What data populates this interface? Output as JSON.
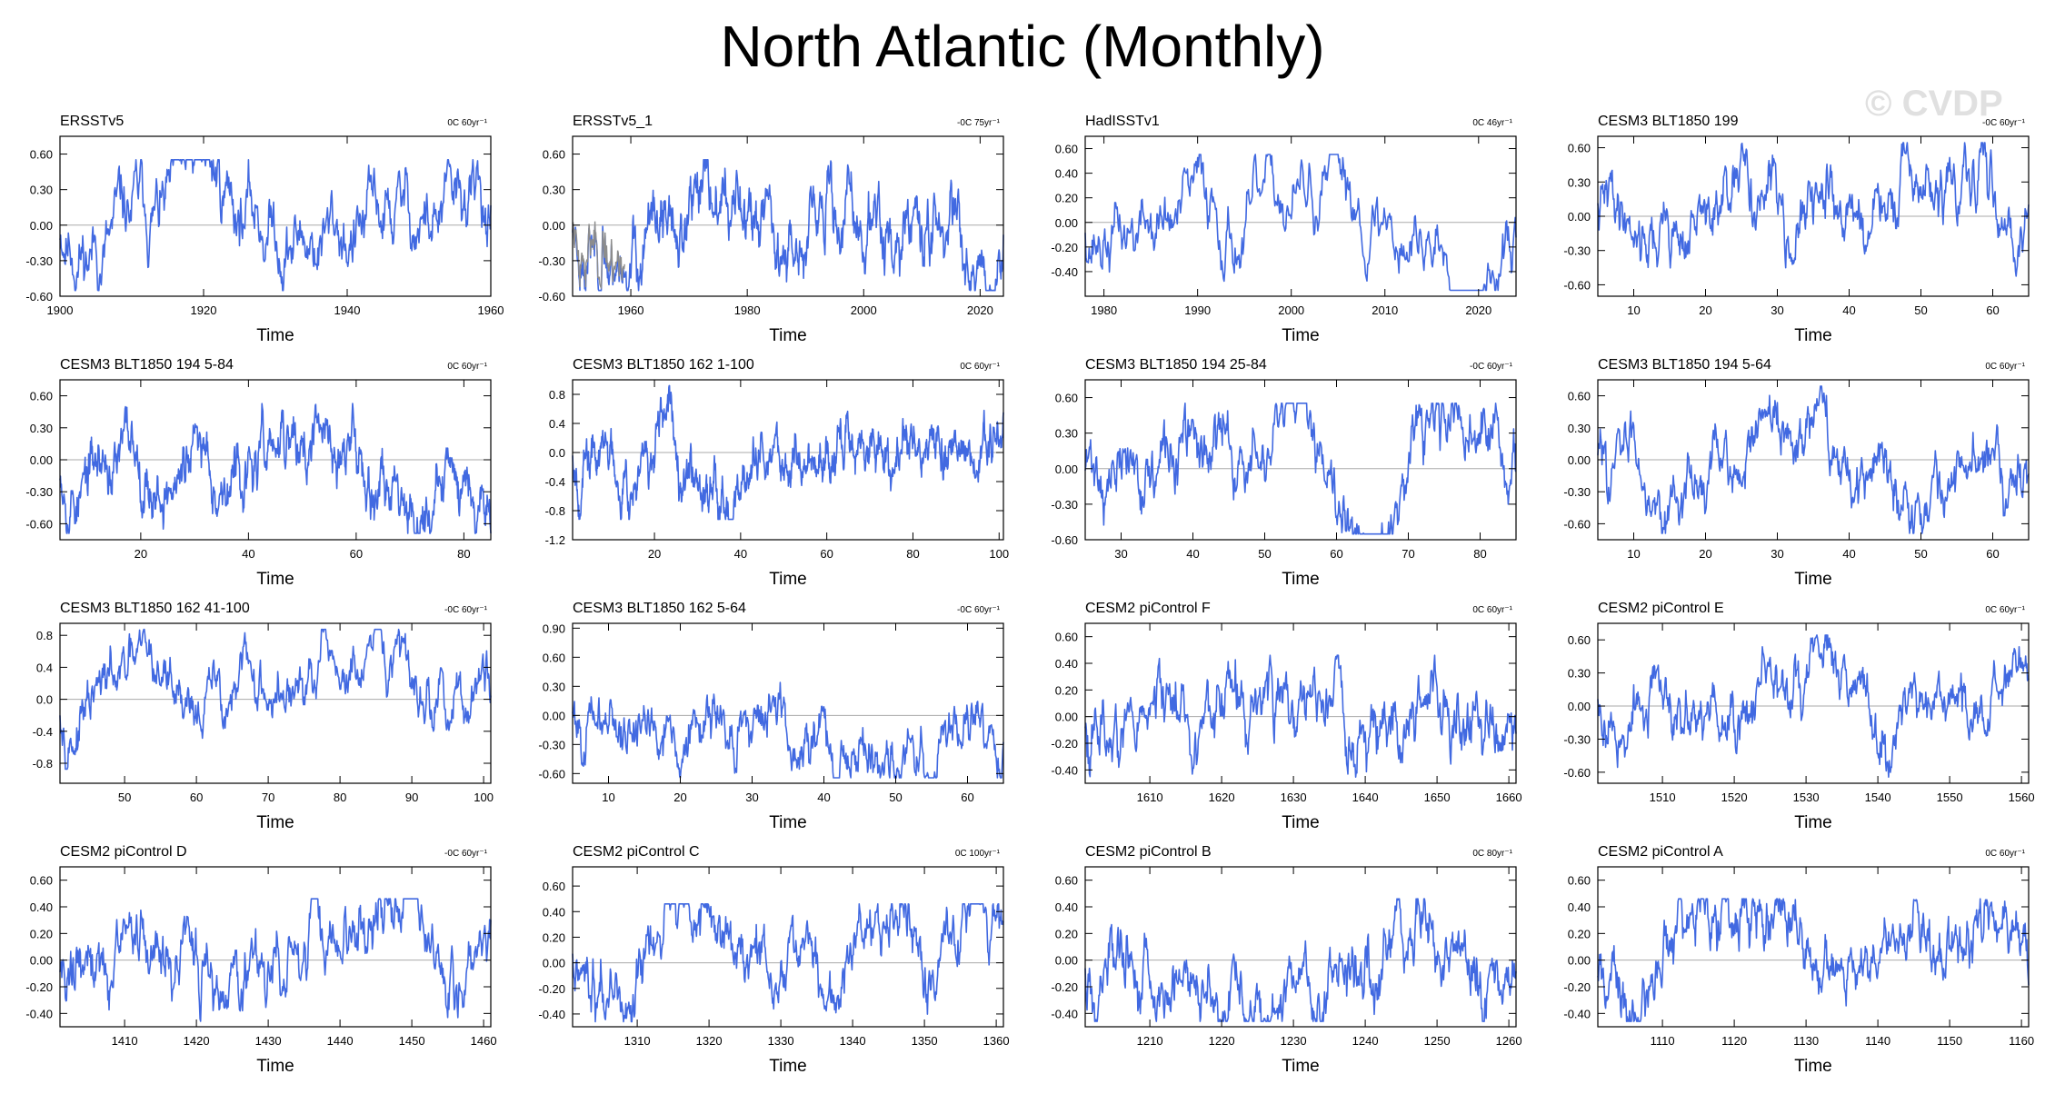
{
  "title": "North Atlantic (Monthly)",
  "watermark": "© CVDP",
  "colors": {
    "series": "#4169e1",
    "zero_line": "#aaaaaa",
    "obs_overlay": "#8c8c8c",
    "axis": "#000000"
  },
  "chart_data": [
    {
      "type": "line",
      "title": "ERSSTv5",
      "trend": "0C 60yr⁻¹",
      "xlabel": "Time",
      "xlim": [
        1900,
        1960
      ],
      "xticks": [
        1900,
        1920,
        1940,
        1960
      ],
      "ylim": [
        -0.6,
        0.75
      ],
      "yticks": [
        "0.60",
        "0.30",
        "0.00",
        "-0.30",
        "-0.60"
      ],
      "seed": 11,
      "amp": 0.2,
      "ar": 0.85
    },
    {
      "type": "line",
      "title": "ERSSTv5_1",
      "trend": "-0C 75yr⁻¹",
      "xlabel": "Time",
      "xlim": [
        1950,
        2024
      ],
      "xticks": [
        1960,
        1980,
        2000,
        2020
      ],
      "ylim": [
        -0.6,
        0.75
      ],
      "yticks": [
        "0.60",
        "0.30",
        "0.00",
        "-0.30",
        "-0.60"
      ],
      "seed": 23,
      "amp": 0.2,
      "ar": 0.85,
      "overlay": [
        1950,
        1959
      ]
    },
    {
      "type": "line",
      "title": "HadISSTv1",
      "trend": "0C 46yr⁻¹",
      "xlabel": "Time",
      "xlim": [
        1978,
        2024
      ],
      "xticks": [
        1980,
        1990,
        2000,
        2010,
        2020
      ],
      "ylim": [
        -0.6,
        0.7
      ],
      "yticks": [
        "0.60",
        "0.40",
        "0.20",
        "0.00",
        "-0.20",
        "-0.40"
      ],
      "seed": 37,
      "amp": 0.18,
      "ar": 0.85
    },
    {
      "type": "line",
      "title": "CESM3 BLT1850 199",
      "trend": "-0C 60yr⁻¹",
      "xlabel": "Time",
      "xlim": [
        5,
        65
      ],
      "xticks": [
        10,
        20,
        30,
        40,
        50,
        60
      ],
      "ylim": [
        -0.7,
        0.7
      ],
      "yticks": [
        "0.60",
        "0.30",
        "0.00",
        "-0.30",
        "-0.60"
      ],
      "seed": 41,
      "amp": 0.17,
      "ar": 0.85
    },
    {
      "type": "line",
      "title": "CESM3 BLT1850 194 5-84",
      "trend": "0C 60yr⁻¹",
      "xlabel": "Time",
      "xlim": [
        5,
        85
      ],
      "xticks": [
        20,
        40,
        60,
        80
      ],
      "ylim": [
        -0.75,
        0.75
      ],
      "yticks": [
        "0.60",
        "0.30",
        "0.00",
        "-0.30",
        "-0.60"
      ],
      "seed": 53,
      "amp": 0.18,
      "ar": 0.8
    },
    {
      "type": "line",
      "title": "CESM3 BLT1850 162 1-100",
      "trend": "0C 60yr⁻¹",
      "xlabel": "Time",
      "xlim": [
        1,
        101
      ],
      "xticks": [
        20,
        40,
        60,
        80,
        100
      ],
      "ylim": [
        -1.2,
        1.0
      ],
      "yticks": [
        "0.8",
        "0.4",
        "0.0",
        "-0.4",
        "-0.8",
        "-1.2"
      ],
      "seed": 67,
      "amp": 0.25,
      "ar": 0.85
    },
    {
      "type": "line",
      "title": "CESM3 BLT1850 194 25-84",
      "trend": "-0C 60yr⁻¹",
      "xlabel": "Time",
      "xlim": [
        25,
        85
      ],
      "xticks": [
        30,
        40,
        50,
        60,
        70,
        80
      ],
      "ylim": [
        -0.6,
        0.75
      ],
      "yticks": [
        "0.60",
        "0.30",
        "0.00",
        "-0.30",
        "-0.60"
      ],
      "seed": 71,
      "amp": 0.18,
      "ar": 0.82
    },
    {
      "type": "line",
      "title": "CESM3 BLT1850 194 5-64",
      "trend": "0C 60yr⁻¹",
      "xlabel": "Time",
      "xlim": [
        5,
        65
      ],
      "xticks": [
        10,
        20,
        30,
        40,
        50,
        60
      ],
      "ylim": [
        -0.75,
        0.75
      ],
      "yticks": [
        "0.60",
        "0.30",
        "0.00",
        "-0.30",
        "-0.60"
      ],
      "seed": 83,
      "amp": 0.18,
      "ar": 0.82
    },
    {
      "type": "line",
      "title": "CESM3 BLT1850 162 41-100",
      "trend": "-0C 60yr⁻¹",
      "xlabel": "Time",
      "xlim": [
        41,
        101
      ],
      "xticks": [
        50,
        60,
        70,
        80,
        90,
        100
      ],
      "ylim": [
        -1.05,
        0.95
      ],
      "yticks": [
        "0.8",
        "0.4",
        "0.0",
        "-0.4",
        "-0.8"
      ],
      "seed": 97,
      "amp": 0.25,
      "ar": 0.88
    },
    {
      "type": "line",
      "title": "CESM3 BLT1850 162 5-64",
      "trend": "-0C 60yr⁻¹",
      "xlabel": "Time",
      "xlim": [
        5,
        65
      ],
      "xticks": [
        10,
        20,
        30,
        40,
        50,
        60
      ],
      "ylim": [
        -0.7,
        0.95
      ],
      "yticks": [
        "0.90",
        "0.60",
        "0.30",
        "0.00",
        "-0.30",
        "-0.60"
      ],
      "seed": 101,
      "amp": 0.2,
      "ar": 0.85
    },
    {
      "type": "line",
      "title": "CESM2 piControl F",
      "trend": "0C 60yr⁻¹",
      "xlabel": "Time",
      "xlim": [
        1601,
        1661
      ],
      "xticks": [
        1610,
        1620,
        1630,
        1640,
        1650,
        1660
      ],
      "ylim": [
        -0.5,
        0.7
      ],
      "yticks": [
        "0.60",
        "0.40",
        "0.20",
        "0.00",
        "-0.20",
        "-0.40"
      ],
      "seed": 113,
      "amp": 0.16,
      "ar": 0.82
    },
    {
      "type": "line",
      "title": "CESM2 piControl E",
      "trend": "0C 60yr⁻¹",
      "xlabel": "Time",
      "xlim": [
        1501,
        1561
      ],
      "xticks": [
        1510,
        1520,
        1530,
        1540,
        1550,
        1560
      ],
      "ylim": [
        -0.7,
        0.75
      ],
      "yticks": [
        "0.60",
        "0.30",
        "0.00",
        "-0.30",
        "-0.60"
      ],
      "seed": 127,
      "amp": 0.17,
      "ar": 0.85
    },
    {
      "type": "line",
      "title": "CESM2 piControl D",
      "trend": "-0C 60yr⁻¹",
      "xlabel": "Time",
      "xlim": [
        1401,
        1461
      ],
      "xticks": [
        1410,
        1420,
        1430,
        1440,
        1450,
        1460
      ],
      "ylim": [
        -0.5,
        0.7
      ],
      "yticks": [
        "0.60",
        "0.40",
        "0.20",
        "0.00",
        "-0.20",
        "-0.40"
      ],
      "seed": 131,
      "amp": 0.15,
      "ar": 0.82
    },
    {
      "type": "line",
      "title": "CESM2 piControl C",
      "trend": "0C 100yr⁻¹",
      "xlabel": "Time",
      "xlim": [
        1301,
        1361
      ],
      "xticks": [
        1310,
        1320,
        1330,
        1340,
        1350,
        1360
      ],
      "ylim": [
        -0.5,
        0.75
      ],
      "yticks": [
        "0.60",
        "0.40",
        "0.20",
        "0.00",
        "-0.20",
        "-0.40"
      ],
      "seed": 149,
      "amp": 0.15,
      "ar": 0.82
    },
    {
      "type": "line",
      "title": "CESM2 piControl B",
      "trend": "0C 80yr⁻¹",
      "xlabel": "Time",
      "xlim": [
        1201,
        1261
      ],
      "xticks": [
        1210,
        1220,
        1230,
        1240,
        1250,
        1260
      ],
      "ylim": [
        -0.5,
        0.7
      ],
      "yticks": [
        "0.60",
        "0.40",
        "0.20",
        "0.00",
        "-0.20",
        "-0.40"
      ],
      "seed": 157,
      "amp": 0.15,
      "ar": 0.8
    },
    {
      "type": "line",
      "title": "CESM2 piControl A",
      "trend": "0C 60yr⁻¹",
      "xlabel": "Time",
      "xlim": [
        1101,
        1161
      ],
      "xticks": [
        1110,
        1120,
        1130,
        1140,
        1150,
        1160
      ],
      "ylim": [
        -0.5,
        0.7
      ],
      "yticks": [
        "0.60",
        "0.40",
        "0.20",
        "0.00",
        "-0.20",
        "-0.40"
      ],
      "seed": 163,
      "amp": 0.15,
      "ar": 0.82
    }
  ]
}
